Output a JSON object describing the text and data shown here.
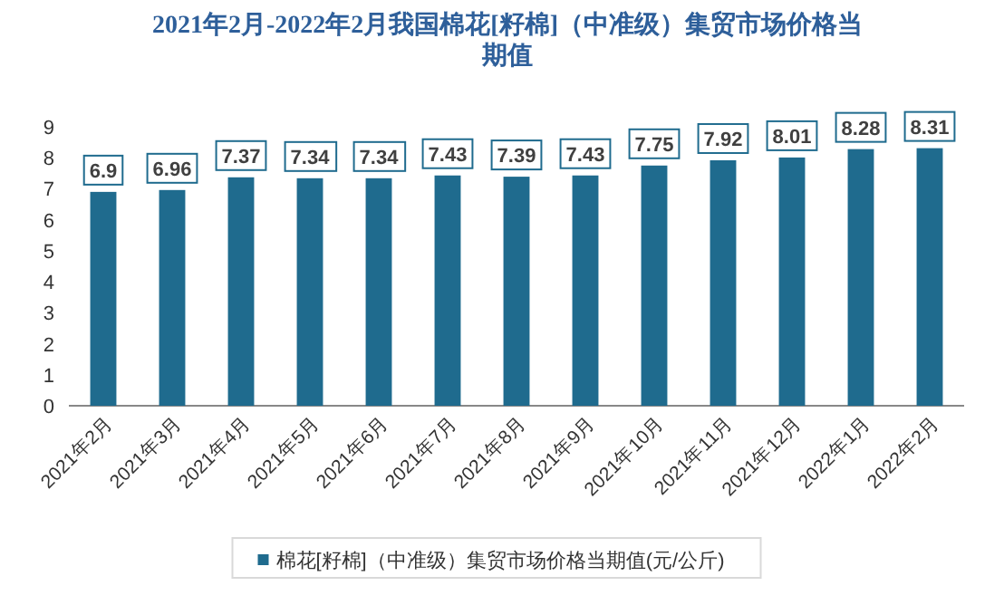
{
  "chart_data": {
    "type": "bar",
    "title": "2021年2月-2022年2月我国棉花[籽棉]（中准级）集贸市场价格当期值",
    "categories": [
      "2021年2月",
      "2021年3月",
      "2021年4月",
      "2021年5月",
      "2021年6月",
      "2021年7月",
      "2021年8月",
      "2021年9月",
      "2021年10月",
      "2021年11月",
      "2021年12月",
      "2022年1月",
      "2022年2月"
    ],
    "series": [
      {
        "name": "棉花[籽棉]（中准级）集贸市场价格当期值(元/公斤)",
        "color": "#1f6b8e",
        "values": [
          6.9,
          6.96,
          7.37,
          7.34,
          7.34,
          7.43,
          7.39,
          7.43,
          7.75,
          7.92,
          8.01,
          8.28,
          8.31
        ]
      }
    ],
    "ylim": [
      0,
      9
    ],
    "yticks": [
      0,
      1,
      2,
      3,
      4,
      5,
      6,
      7,
      8,
      9
    ],
    "data_labels": true,
    "legend": "bottom"
  }
}
